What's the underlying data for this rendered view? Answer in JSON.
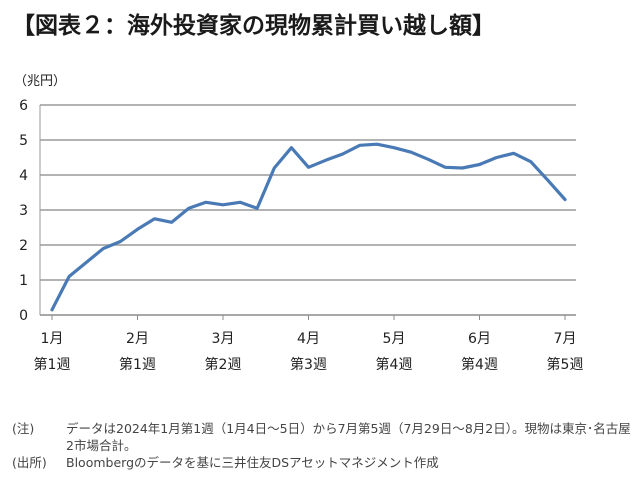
{
  "title": "【図表２：海外投資家の現物累計買い越し額】",
  "unit_label": "（兆円）",
  "chart_data": {
    "type": "line",
    "title": "【図表２：海外投資家の現物累計買い越し額】",
    "ylabel": "（兆円）",
    "ylim": [
      0,
      6
    ],
    "yticks": [
      0,
      1,
      2,
      3,
      4,
      5,
      6
    ],
    "grid": true,
    "legend": "none",
    "line_color": "#4a7ab5",
    "x_tick_labels": [
      {
        "month": "1月",
        "week": "第1週",
        "index": 0
      },
      {
        "month": "2月",
        "week": "第1週",
        "index": 5
      },
      {
        "month": "3月",
        "week": "第2週",
        "index": 10
      },
      {
        "month": "4月",
        "week": "第3週",
        "index": 15
      },
      {
        "month": "5月",
        "week": "第4週",
        "index": 20
      },
      {
        "month": "6月",
        "week": "第4週",
        "index": 25
      },
      {
        "month": "7月",
        "week": "第5週",
        "index": 30
      }
    ],
    "series": [
      {
        "values": [
          0.15,
          1.1,
          1.5,
          1.9,
          2.1,
          2.45,
          2.75,
          2.65,
          3.05,
          3.22,
          3.15,
          3.22,
          3.05,
          4.2,
          4.78,
          4.22,
          4.42,
          4.6,
          4.85,
          4.88,
          4.78,
          4.65,
          4.45,
          4.22,
          4.2,
          4.3,
          4.5,
          4.62,
          4.38,
          3.85,
          3.3
        ]
      }
    ]
  },
  "notes": [
    {
      "head": "(注)",
      "text": "データは2024年1月第1週（1月4日～5日）から7月第5週（7月29日～8月2日）。現物は東京･名古屋2市場合計。"
    },
    {
      "head": "(出所)",
      "text": "Bloombergのデータを基に三井住友DSアセットマネジメント作成"
    }
  ]
}
